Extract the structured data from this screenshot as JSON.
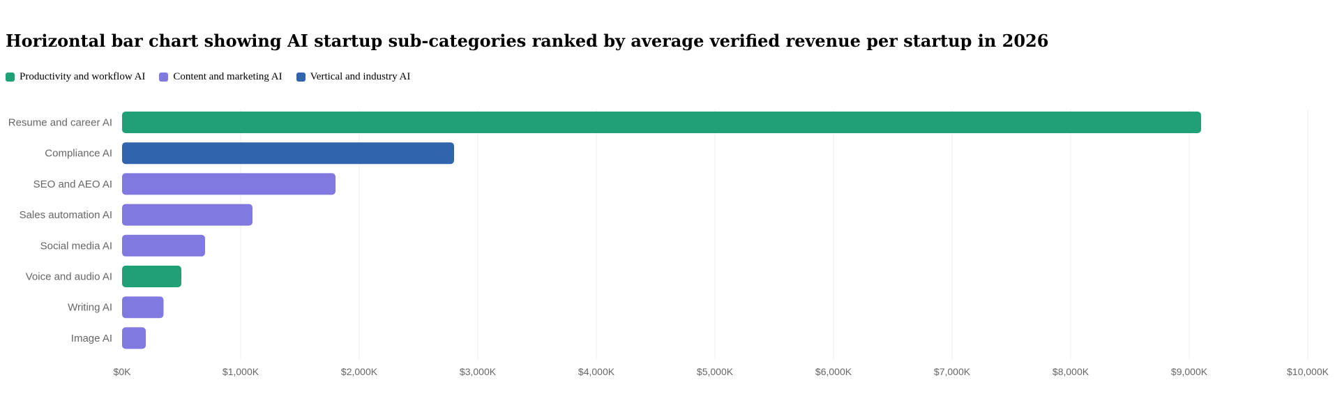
{
  "chart_data": {
    "type": "bar",
    "orientation": "horizontal",
    "title": "Horizontal bar chart showing AI startup sub-categories ranked by average verified revenue per startup in 2026",
    "legend": [
      {
        "name": "Productivity and workflow AI",
        "color": "#1fa077"
      },
      {
        "name": "Content and marketing AI",
        "color": "#8079df"
      },
      {
        "name": "Vertical and industry AI",
        "color": "#3164ad"
      }
    ],
    "legend_placement": "top-left",
    "categories": [
      "Resume and career AI",
      "Compliance AI",
      "SEO and AEO AI",
      "Sales automation AI",
      "Social media AI",
      "Voice and audio AI",
      "Writing AI",
      "Image AI"
    ],
    "values": [
      9100,
      2800,
      1800,
      1100,
      700,
      500,
      350,
      200
    ],
    "groups": [
      "Productivity and workflow AI",
      "Vertical and industry AI",
      "Content and marketing AI",
      "Content and marketing AI",
      "Content and marketing AI",
      "Productivity and workflow AI",
      "Content and marketing AI",
      "Content and marketing AI"
    ],
    "xlim": [
      0,
      10000
    ],
    "xticks": [
      0,
      1000,
      2000,
      3000,
      4000,
      5000,
      6000,
      7000,
      8000,
      9000,
      10000
    ],
    "xtick_labels": [
      "$0K",
      "$1,000K",
      "$2,000K",
      "$3,000K",
      "$4,000K",
      "$5,000K",
      "$6,000K",
      "$7,000K",
      "$8,000K",
      "$9,000K",
      "$10,000K"
    ],
    "xlabel": "",
    "ylabel": "",
    "grid": true,
    "grid_color": "#ececec",
    "label_color": "#666666"
  }
}
